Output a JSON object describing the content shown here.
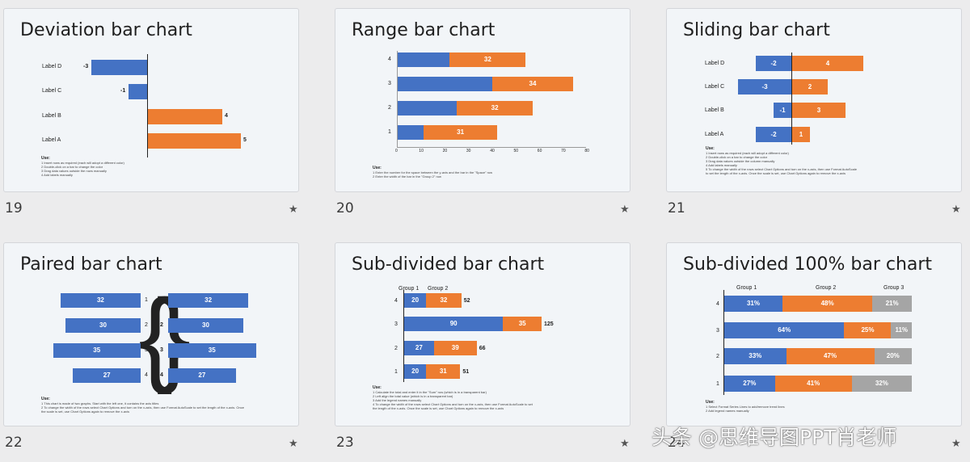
{
  "slides": [
    {
      "number": "19",
      "title": "Deviation bar chart"
    },
    {
      "number": "20",
      "title": "Range bar chart"
    },
    {
      "number": "21",
      "title": "Sliding bar chart"
    },
    {
      "number": "22",
      "title": "Paired bar chart"
    },
    {
      "number": "23",
      "title": "Sub-divided bar chart"
    },
    {
      "number": "24",
      "title": "Sub-divided 100% bar chart"
    }
  ],
  "star_icon": "star-icon",
  "notes": {
    "heading": "Use:",
    "s19": [
      "1  Insert rows as required (each will adopt a different color)",
      "2  Double-click on a bar to change the color",
      "3  Drag data values outside the rows manually",
      "4  Add labels manually"
    ],
    "s20": [
      "1  Enter the number for the space between the y-axis and the bar in the \"Space\" row",
      "2  Enter the width of the bar in the \"Group 2\" row"
    ],
    "s21": [
      "1  Insert rows as required (each will adopt a different color)",
      "2  Double-click on a bar to change the color",
      "3  Drag data values outside the column manually",
      "4  Add labels manually",
      "5  To change the width of the rows select Chart Options and turn on the x-axis, then use Format AutoScale",
      "   to set the length of the x-axis. Once the scale is set, use Chart Options again to remove the x-axis"
    ],
    "s22": [
      "1  This chart is made of two graphs. Start with the left one, it contains the axis titles",
      "2  To change the width of the rows select Chart Options and turn on the x-axis, then use Format AutoScale to set the length of the x-axis. Once",
      "   the scale is set, use Chart Options again to remove the x-axis"
    ],
    "s23": [
      "1  Calculate the total and enter it in the \"Sum\" row (which is in a transparent bar)",
      "2  Left align the total value (which is in a transparent bar)",
      "3  Add the legend names manually",
      "4  To change the width of the rows select Chart Options and turn on the x-axis, then use Format AutoScale to set",
      "   the length of the x-axis. Once the scale is set, use Chart Options again to remove the x-axis"
    ],
    "s24": [
      "1  Select Format Series Lines to add/remove trend lines",
      "2  Add legend names manually"
    ]
  },
  "chart_data": [
    {
      "type": "bar",
      "title": "Deviation bar chart",
      "categories": [
        "Label D",
        "Label C",
        "Label B",
        "Label A"
      ],
      "values": [
        -3,
        -1,
        4,
        5
      ],
      "colors": {
        "negative": "#4472c4",
        "positive": "#ed7d31"
      }
    },
    {
      "type": "bar",
      "title": "Range bar chart",
      "categories": [
        "4",
        "3",
        "2",
        "1"
      ],
      "series": [
        {
          "values": [
            22,
            40,
            25,
            11
          ]
        },
        {
          "values": [
            32,
            34,
            32,
            31
          ]
        }
      ],
      "xticks": [
        "0",
        "10",
        "20",
        "30",
        "40",
        "50",
        "60",
        "70",
        "80"
      ],
      "xlim": [
        0,
        80
      ],
      "colors": [
        "#4472c4",
        "#ed7d31"
      ]
    },
    {
      "type": "bar",
      "title": "Sliding bar chart",
      "categories": [
        "Label D",
        "Label C",
        "Label B",
        "Label A"
      ],
      "series": [
        {
          "values": [
            -2,
            -3,
            -1,
            -2
          ]
        },
        {
          "values": [
            4,
            2,
            3,
            1
          ]
        }
      ],
      "colors": [
        "#4472c4",
        "#ed7d31"
      ]
    },
    {
      "type": "bar",
      "title": "Paired bar chart",
      "categories": [
        "1",
        "2",
        "3",
        "4"
      ],
      "series": [
        {
          "values": [
            32,
            30,
            35,
            27
          ]
        },
        {
          "values": [
            32,
            30,
            35,
            27
          ]
        }
      ],
      "color": "#4472c4"
    },
    {
      "type": "bar",
      "title": "Sub-divided bar chart",
      "categories": [
        "4",
        "3",
        "2",
        "1"
      ],
      "legend": [
        "Group 1",
        "Group 2"
      ],
      "series": [
        {
          "name": "Group 1",
          "values": [
            20,
            90,
            27,
            20
          ]
        },
        {
          "name": "Group 2",
          "values": [
            32,
            35,
            39,
            31
          ]
        }
      ],
      "totals": [
        52,
        125,
        66,
        51
      ],
      "colors": [
        "#4472c4",
        "#ed7d31"
      ]
    },
    {
      "type": "bar",
      "title": "Sub-divided 100% bar chart",
      "categories": [
        "4",
        "3",
        "2",
        "1"
      ],
      "legend": [
        "Group 1",
        "Group 2",
        "Group 3"
      ],
      "series": [
        {
          "name": "Group 1",
          "values": [
            31,
            64,
            33,
            27
          ]
        },
        {
          "name": "Group 2",
          "values": [
            48,
            25,
            47,
            41
          ]
        },
        {
          "name": "Group 3",
          "values": [
            21,
            11,
            20,
            32
          ]
        }
      ],
      "colors": [
        "#4472c4",
        "#ed7d31",
        "#a5a5a5"
      ]
    }
  ],
  "watermark": "头条 @思维导图PPT肖老师"
}
